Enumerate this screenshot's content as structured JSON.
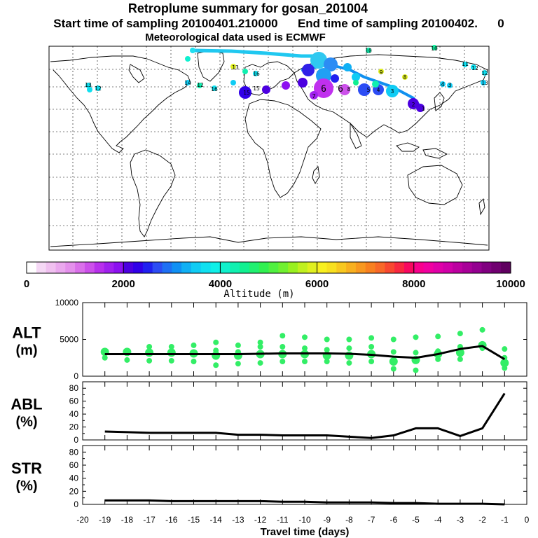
{
  "header": {
    "title": "Retroplume summary for gosan_201004",
    "sampling": "Start time of sampling 20100401.210000      End time of sampling 20100402.      0",
    "met": "Meteorological data used is ECMWF"
  },
  "colorbar": {
    "ticks": [
      "0",
      "2000",
      "4000",
      "6000",
      "8000",
      "10000"
    ],
    "label": "Altitude  (m)",
    "colors": [
      "#ffffff",
      "#f5d8f5",
      "#f0c0f0",
      "#eaa8ee",
      "#e490ec",
      "#da70ea",
      "#cc50ea",
      "#b830ec",
      "#a020ee",
      "#8c10f0",
      "#4c00e0",
      "#3000e8",
      "#2020f0",
      "#2c4cf4",
      "#1e70f4",
      "#1090f4",
      "#10b0f4",
      "#10ccf4",
      "#10e0f0",
      "#10f0e8",
      "#10f0cc",
      "#10f0b0",
      "#10f090",
      "#20f070",
      "#30f050",
      "#50f040",
      "#70f030",
      "#98f020",
      "#c0f020",
      "#e0f020",
      "#f8f020",
      "#f8e020",
      "#f8c820",
      "#f8b020",
      "#f89820",
      "#f88020",
      "#f86828",
      "#f84830",
      "#f82840",
      "#f80860",
      "#f8008c",
      "#f000a0",
      "#e000a8",
      "#d000a8",
      "#bc00a0",
      "#a80098",
      "#940090",
      "#800080",
      "#700070",
      "#600060"
    ]
  },
  "globe": {
    "labels": [
      "10",
      "13",
      "12",
      "16",
      "12",
      "14",
      "15",
      "16",
      "13",
      "15",
      "12",
      "11",
      "12",
      "13",
      "9",
      "8",
      "8",
      "6",
      "7",
      "6",
      "5",
      "4",
      "3",
      "2",
      "1",
      "4",
      "3",
      "10"
    ]
  },
  "chart_data": [
    {
      "type": "line",
      "title": "ALT",
      "ylabel_line1": "ALT",
      "ylabel_line2": "(m)",
      "ylim": [
        0,
        10000
      ],
      "yticks": [
        "0",
        "5000",
        "10000"
      ],
      "x": [
        -19,
        -18,
        -17,
        -16,
        -15,
        -14,
        -13,
        -12,
        -11,
        -10,
        -9,
        -8,
        -7,
        -6,
        -5,
        -4,
        -3,
        -2,
        -1
      ],
      "series": [
        {
          "name": "mean altitude",
          "values": [
            3000,
            3000,
            3000,
            3000,
            3000,
            3000,
            3000,
            3050,
            3100,
            3100,
            3100,
            3050,
            2900,
            2650,
            2500,
            3000,
            3700,
            4100,
            2300
          ]
        }
      ],
      "points": [
        {
          "x": -19,
          "y": [
            2500,
            3300
          ]
        },
        {
          "x": -18,
          "y": [
            2200,
            3300
          ]
        },
        {
          "x": -17,
          "y": [
            2100,
            3200,
            4000
          ]
        },
        {
          "x": -16,
          "y": [
            2100,
            3200,
            4000
          ]
        },
        {
          "x": -15,
          "y": [
            2000,
            3100,
            4200
          ]
        },
        {
          "x": -14,
          "y": [
            1500,
            2800,
            3500,
            4600
          ]
        },
        {
          "x": -13,
          "y": [
            1700,
            2800,
            3300,
            4200
          ]
        },
        {
          "x": -12,
          "y": [
            1800,
            3000,
            4000,
            4600
          ]
        },
        {
          "x": -11,
          "y": [
            2000,
            3000,
            4000,
            5500
          ]
        },
        {
          "x": -10,
          "y": [
            2000,
            3000,
            3800,
            5300
          ]
        },
        {
          "x": -9,
          "y": [
            2000,
            2800,
            3600,
            5000
          ]
        },
        {
          "x": -8,
          "y": [
            1800,
            2800,
            3800,
            5000
          ]
        },
        {
          "x": -7,
          "y": [
            2000,
            3000,
            4000,
            5200
          ]
        },
        {
          "x": -6,
          "y": [
            1000,
            2000,
            3300,
            5000
          ]
        },
        {
          "x": -5,
          "y": [
            800,
            2200,
            3200,
            5300
          ]
        },
        {
          "x": -4,
          "y": [
            2300,
            3000,
            3400,
            5400
          ]
        },
        {
          "x": -3,
          "y": [
            2300,
            3200,
            4000,
            5800
          ]
        },
        {
          "x": -2,
          "y": [
            3800,
            4200,
            6300
          ]
        },
        {
          "x": -1,
          "y": [
            1100,
            1800,
            2500,
            3700
          ]
        }
      ]
    },
    {
      "type": "line",
      "title": "ABL",
      "ylabel_line1": "ABL",
      "ylabel_line2": "(%)",
      "ylim": [
        0,
        90
      ],
      "yticks": [
        "0",
        "20",
        "40",
        "60",
        "80"
      ],
      "x": [
        -19,
        -18,
        -17,
        -16,
        -15,
        -14,
        -13,
        -12,
        -11,
        -10,
        -9,
        -8,
        -7,
        -6,
        -5,
        -4,
        -3,
        -2,
        -1
      ],
      "series": [
        {
          "name": "ABL fraction",
          "values": [
            13,
            12,
            11,
            11,
            11,
            11,
            8,
            8,
            7,
            7,
            7,
            5,
            3,
            7,
            18,
            18,
            6,
            18,
            72
          ]
        }
      ]
    },
    {
      "type": "line",
      "title": "STR",
      "ylabel_line1": "STR",
      "ylabel_line2": "(%)",
      "ylim": [
        0,
        90
      ],
      "yticks": [
        "0",
        "20",
        "40",
        "60",
        "80"
      ],
      "xlabel": "Travel time (days)",
      "xticks": [
        "-20",
        "-19",
        "-18",
        "-17",
        "-16",
        "-15",
        "-14",
        "-13",
        "-12",
        "-11",
        "-10",
        "-9",
        "-8",
        "-7",
        "-6",
        "-5",
        "-4",
        "-3",
        "-2",
        "-1",
        "0"
      ],
      "x": [
        -19,
        -18,
        -17,
        -16,
        -15,
        -14,
        -13,
        -12,
        -11,
        -10,
        -9,
        -8,
        -7,
        -6,
        -5,
        -4,
        -3,
        -2,
        -1
      ],
      "series": [
        {
          "name": "stratosphere fraction",
          "values": [
            6,
            6,
            6,
            5,
            5,
            5,
            5,
            5,
            4,
            4,
            3,
            3,
            3,
            2,
            2,
            1,
            1,
            1,
            0
          ]
        }
      ]
    }
  ]
}
